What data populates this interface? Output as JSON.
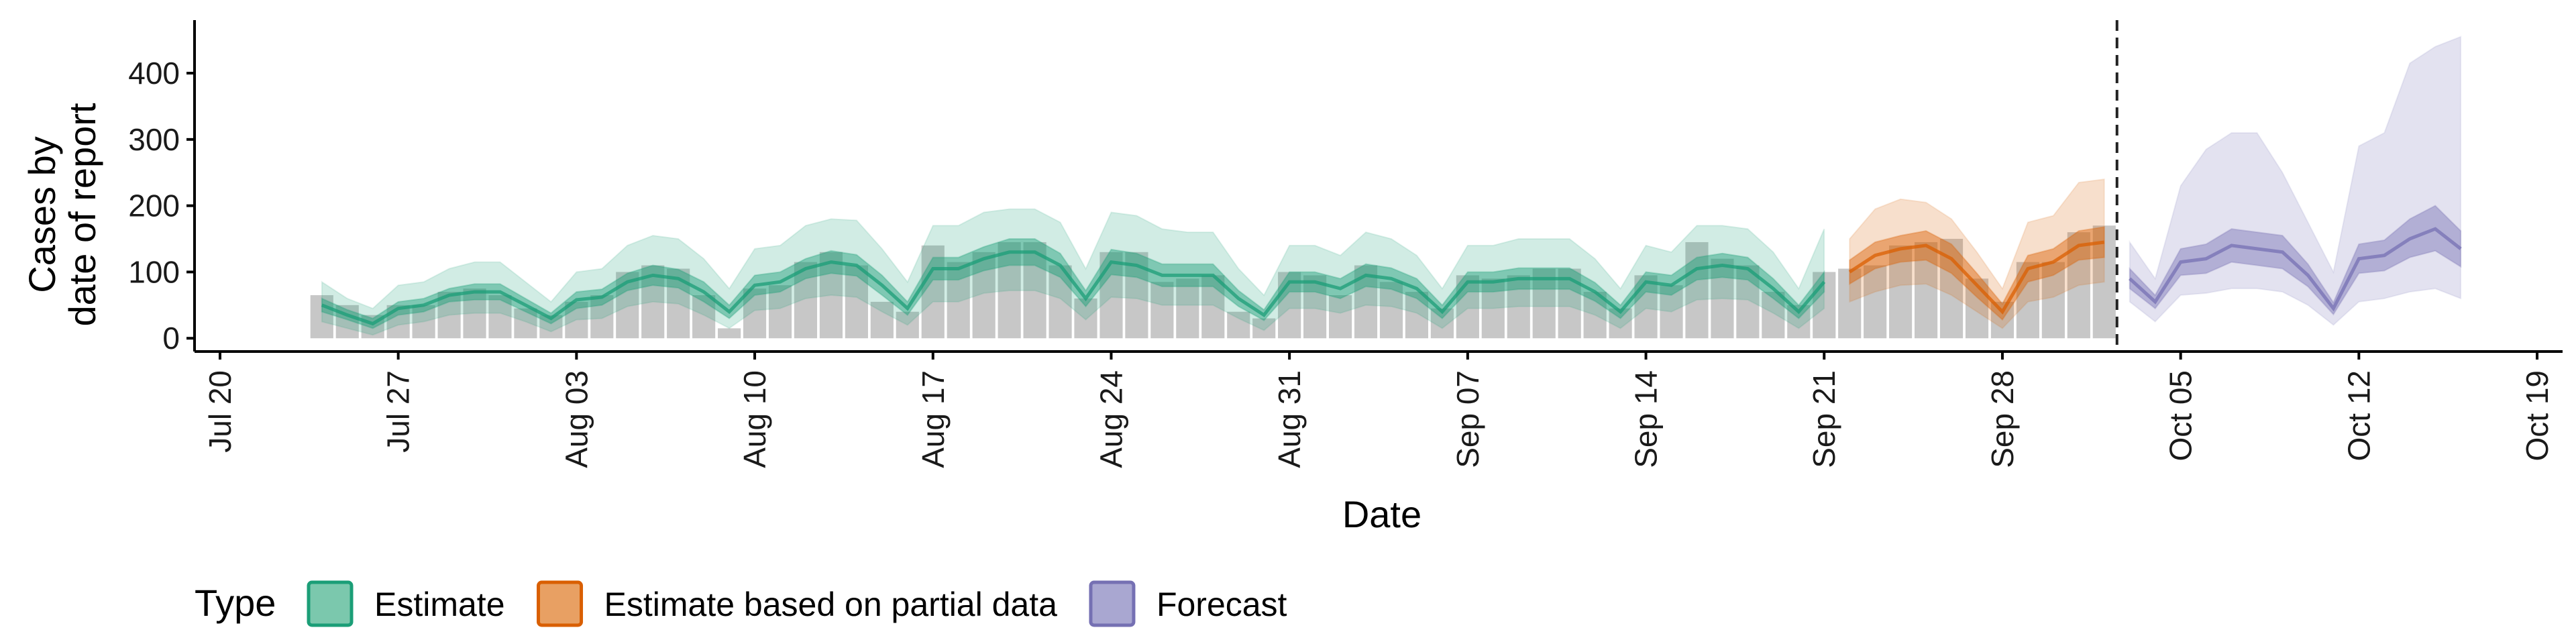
{
  "chart_data": {
    "type": "area",
    "xlabel": "Date",
    "ylabel_lines": [
      "Cases by",
      "date of report"
    ],
    "x_tick_labels": [
      "Jul 20",
      "Jul 27",
      "Aug 03",
      "Aug 10",
      "Aug 17",
      "Aug 24",
      "Aug 31",
      "Sep 07",
      "Sep 14",
      "Sep 21",
      "Sep 28",
      "Oct 05",
      "Oct 12",
      "Oct 19"
    ],
    "x_tick_dates": [
      "2020-07-20",
      "2020-07-27",
      "2020-08-03",
      "2020-08-10",
      "2020-08-17",
      "2020-08-24",
      "2020-08-31",
      "2020-09-07",
      "2020-09-14",
      "2020-09-21",
      "2020-09-28",
      "2020-10-05",
      "2020-10-12",
      "2020-10-19"
    ],
    "xlim": [
      "2020-07-19",
      "2020-10-20"
    ],
    "y_ticks": [
      0,
      100,
      200,
      300,
      400
    ],
    "ylim": [
      -20,
      480
    ],
    "forecast_date": "2020-10-02",
    "legend": {
      "title": "Type",
      "position": "bottom",
      "entries": [
        {
          "label": "Estimate",
          "fill": "#7bc8ad",
          "stroke": "#1b9e77"
        },
        {
          "label": "Estimate based on partial data",
          "fill": "#e8a063",
          "stroke": "#d95f02"
        },
        {
          "label": "Forecast",
          "fill": "#a9a7d1",
          "stroke": "#7570b3"
        }
      ]
    },
    "colors": {
      "bars": "#bdbdbd",
      "Estimate": "#1b9e77",
      "Estimate based on partial data": "#d95f02",
      "Forecast": "#7570b3"
    },
    "reported_cases": {
      "dates": [
        "2020-07-24",
        "2020-07-25",
        "2020-07-26",
        "2020-07-27",
        "2020-07-28",
        "2020-07-29",
        "2020-07-30",
        "2020-07-31",
        "2020-08-01",
        "2020-08-02",
        "2020-08-03",
        "2020-08-04",
        "2020-08-05",
        "2020-08-06",
        "2020-08-07",
        "2020-08-08",
        "2020-08-09",
        "2020-08-10",
        "2020-08-11",
        "2020-08-12",
        "2020-08-13",
        "2020-08-14",
        "2020-08-15",
        "2020-08-16",
        "2020-08-17",
        "2020-08-18",
        "2020-08-19",
        "2020-08-20",
        "2020-08-21",
        "2020-08-22",
        "2020-08-23",
        "2020-08-24",
        "2020-08-25",
        "2020-08-26",
        "2020-08-27",
        "2020-08-28",
        "2020-08-29",
        "2020-08-30",
        "2020-08-31",
        "2020-09-01",
        "2020-09-02",
        "2020-09-03",
        "2020-09-04",
        "2020-09-05",
        "2020-09-06",
        "2020-09-07",
        "2020-09-08",
        "2020-09-09",
        "2020-09-10",
        "2020-09-11",
        "2020-09-12",
        "2020-09-13",
        "2020-09-14",
        "2020-09-15",
        "2020-09-16",
        "2020-09-17",
        "2020-09-18",
        "2020-09-19",
        "2020-09-20",
        "2020-09-21",
        "2020-09-22",
        "2020-09-23",
        "2020-09-24",
        "2020-09-25",
        "2020-09-26",
        "2020-09-27",
        "2020-09-28",
        "2020-09-29",
        "2020-09-30",
        "2020-10-01",
        "2020-10-02"
      ],
      "values": [
        65,
        50,
        35,
        50,
        50,
        70,
        75,
        65,
        45,
        35,
        55,
        65,
        100,
        110,
        105,
        65,
        15,
        75,
        80,
        115,
        130,
        110,
        55,
        40,
        140,
        115,
        130,
        145,
        145,
        110,
        60,
        130,
        130,
        85,
        90,
        95,
        40,
        30,
        100,
        95,
        65,
        110,
        85,
        70,
        45,
        95,
        90,
        95,
        105,
        105,
        70,
        45,
        95,
        80,
        145,
        120,
        110,
        70,
        50,
        100,
        105,
        110,
        140,
        145,
        150,
        90,
        55,
        115,
        115,
        160,
        170
      ]
    },
    "estimate": {
      "dates": [
        "2020-07-24",
        "2020-07-25",
        "2020-07-26",
        "2020-07-27",
        "2020-07-28",
        "2020-07-29",
        "2020-07-30",
        "2020-07-31",
        "2020-08-01",
        "2020-08-02",
        "2020-08-03",
        "2020-08-04",
        "2020-08-05",
        "2020-08-06",
        "2020-08-07",
        "2020-08-08",
        "2020-08-09",
        "2020-08-10",
        "2020-08-11",
        "2020-08-12",
        "2020-08-13",
        "2020-08-14",
        "2020-08-15",
        "2020-08-16",
        "2020-08-17",
        "2020-08-18",
        "2020-08-19",
        "2020-08-20",
        "2020-08-21",
        "2020-08-22",
        "2020-08-23",
        "2020-08-24",
        "2020-08-25",
        "2020-08-26",
        "2020-08-27",
        "2020-08-28",
        "2020-08-29",
        "2020-08-30",
        "2020-08-31",
        "2020-09-01",
        "2020-09-02",
        "2020-09-03",
        "2020-09-04",
        "2020-09-05",
        "2020-09-06",
        "2020-09-07",
        "2020-09-08",
        "2020-09-09",
        "2020-09-10",
        "2020-09-11",
        "2020-09-12",
        "2020-09-13",
        "2020-09-14",
        "2020-09-15",
        "2020-09-16",
        "2020-09-17",
        "2020-09-18",
        "2020-09-19",
        "2020-09-20",
        "2020-09-21"
      ],
      "median": [
        50,
        35,
        22,
        45,
        50,
        65,
        70,
        70,
        50,
        30,
        58,
        62,
        85,
        95,
        90,
        70,
        40,
        80,
        85,
        105,
        115,
        110,
        80,
        45,
        105,
        105,
        120,
        130,
        130,
        110,
        60,
        115,
        110,
        95,
        95,
        95,
        60,
        35,
        85,
        85,
        75,
        95,
        90,
        75,
        40,
        85,
        85,
        90,
        90,
        90,
        70,
        40,
        85,
        80,
        105,
        110,
        105,
        75,
        40,
        85
      ],
      "low20": [
        40,
        28,
        15,
        35,
        40,
        55,
        58,
        58,
        40,
        22,
        45,
        50,
        72,
        80,
        76,
        55,
        30,
        65,
        70,
        90,
        98,
        94,
        65,
        35,
        88,
        88,
        102,
        110,
        110,
        92,
        48,
        96,
        92,
        78,
        78,
        78,
        48,
        27,
        70,
        70,
        60,
        78,
        74,
        60,
        30,
        70,
        70,
        74,
        74,
        74,
        56,
        30,
        70,
        65,
        88,
        92,
        88,
        60,
        30,
        70
      ],
      "high20": [
        60,
        43,
        30,
        55,
        60,
        75,
        82,
        82,
        60,
        38,
        70,
        74,
        98,
        110,
        104,
        85,
        50,
        95,
        100,
        120,
        132,
        126,
        95,
        55,
        122,
        122,
        138,
        150,
        150,
        128,
        72,
        134,
        128,
        112,
        112,
        112,
        72,
        43,
        100,
        100,
        90,
        112,
        106,
        90,
        50,
        100,
        100,
        106,
        106,
        106,
        84,
        50,
        100,
        95,
        122,
        128,
        122,
        90,
        50,
        100
      ],
      "low90": [
        25,
        15,
        5,
        20,
        25,
        35,
        38,
        38,
        25,
        10,
        28,
        30,
        48,
        55,
        52,
        35,
        15,
        42,
        45,
        60,
        65,
        62,
        40,
        20,
        55,
        55,
        68,
        72,
        72,
        60,
        28,
        62,
        60,
        50,
        50,
        50,
        30,
        12,
        45,
        45,
        38,
        50,
        48,
        38,
        15,
        45,
        45,
        48,
        48,
        48,
        35,
        15,
        45,
        40,
        58,
        60,
        58,
        38,
        15,
        45
      ],
      "high90": [
        85,
        60,
        45,
        80,
        85,
        105,
        115,
        115,
        85,
        55,
        100,
        105,
        140,
        155,
        150,
        120,
        75,
        135,
        140,
        170,
        180,
        178,
        135,
        85,
        170,
        170,
        190,
        195,
        195,
        175,
        105,
        190,
        185,
        165,
        160,
        160,
        105,
        65,
        140,
        140,
        125,
        160,
        150,
        125,
        75,
        140,
        140,
        150,
        150,
        150,
        120,
        75,
        140,
        130,
        170,
        170,
        165,
        130,
        75,
        165
      ]
    },
    "estimate_partial": {
      "dates": [
        "2020-09-22",
        "2020-09-23",
        "2020-09-24",
        "2020-09-25",
        "2020-09-26",
        "2020-09-27",
        "2020-09-28",
        "2020-09-29",
        "2020-09-30",
        "2020-10-01",
        "2020-10-02"
      ],
      "median": [
        100,
        125,
        135,
        140,
        120,
        80,
        40,
        105,
        115,
        140,
        145
      ],
      "low20": [
        82,
        105,
        115,
        118,
        98,
        62,
        28,
        85,
        95,
        118,
        122
      ],
      "high20": [
        118,
        145,
        155,
        162,
        142,
        98,
        52,
        125,
        135,
        162,
        168
      ],
      "low90": [
        55,
        70,
        80,
        82,
        65,
        40,
        15,
        55,
        62,
        80,
        85
      ],
      "high90": [
        150,
        195,
        210,
        205,
        180,
        130,
        75,
        175,
        185,
        235,
        240
      ]
    },
    "forecast": {
      "dates": [
        "2020-10-03",
        "2020-10-04",
        "2020-10-05",
        "2020-10-06",
        "2020-10-07",
        "2020-10-08",
        "2020-10-09",
        "2020-10-10",
        "2020-10-11",
        "2020-10-12",
        "2020-10-13",
        "2020-10-14",
        "2020-10-15",
        "2020-10-16"
      ],
      "median": [
        90,
        55,
        115,
        120,
        140,
        135,
        130,
        95,
        45,
        120,
        125,
        150,
        165,
        135
      ],
      "low20": [
        75,
        45,
        95,
        98,
        115,
        110,
        105,
        78,
        36,
        98,
        102,
        122,
        132,
        108
      ],
      "high20": [
        105,
        65,
        135,
        142,
        165,
        160,
        155,
        112,
        54,
        142,
        148,
        180,
        200,
        162
      ],
      "low90": [
        55,
        25,
        65,
        68,
        75,
        75,
        70,
        50,
        20,
        55,
        60,
        70,
        75,
        60
      ],
      "high90": [
        145,
        90,
        230,
        285,
        310,
        310,
        250,
        175,
        100,
        290,
        310,
        415,
        440,
        455
      ]
    }
  }
}
